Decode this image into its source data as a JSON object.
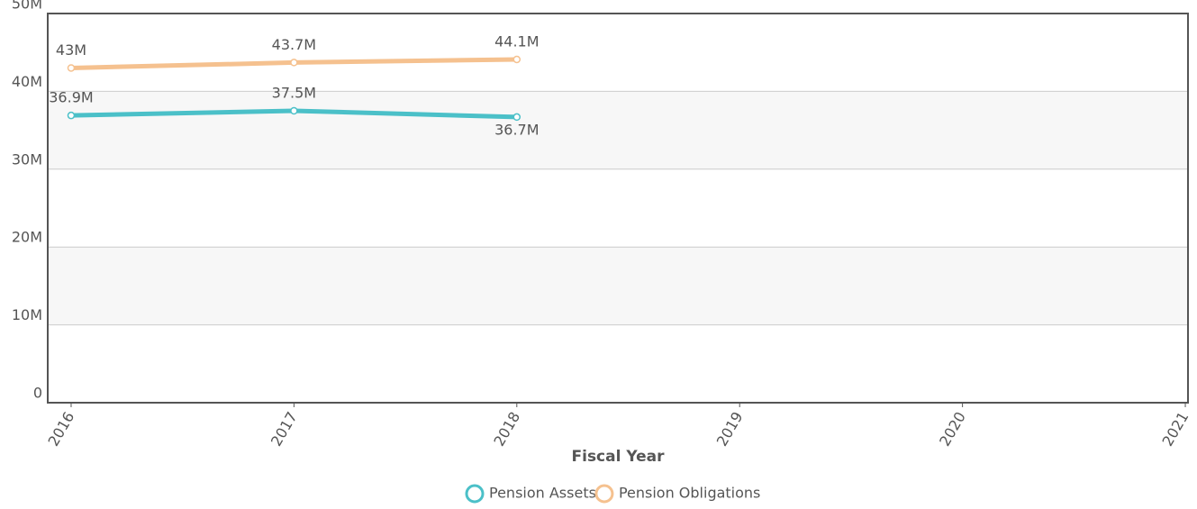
{
  "chart_data": {
    "type": "line",
    "x": [
      2016,
      2017,
      2018
    ],
    "series": [
      {
        "name": "Pension Assets",
        "color": "#4bc0c8",
        "values": [
          36900000,
          37500000,
          36700000
        ],
        "value_labels": [
          "36.9M",
          "37.5M",
          "36.7M"
        ]
      },
      {
        "name": "Pension Obligations",
        "color": "#f5c18f",
        "values": [
          43000000,
          43700000,
          44100000
        ],
        "value_labels": [
          "43M",
          "43.7M",
          "44.1M"
        ]
      }
    ],
    "xlabel": "Fiscal Year",
    "xlim": [
      2015.895,
      2021.012
    ],
    "xticks": [
      2016,
      2017,
      2018,
      2019,
      2020,
      2021
    ],
    "ylim": [
      0,
      50000000
    ],
    "yticks": [
      0,
      {
        "value": 10000000,
        "label": "10M"
      },
      {
        "value": 20000000,
        "label": "20M"
      },
      {
        "value": 30000000,
        "label": "30M"
      },
      {
        "value": 40000000,
        "label": "40M"
      },
      {
        "value": 50000000,
        "label": "50M"
      }
    ],
    "grid": true,
    "alternate_bands": true,
    "legend": "bottom"
  }
}
